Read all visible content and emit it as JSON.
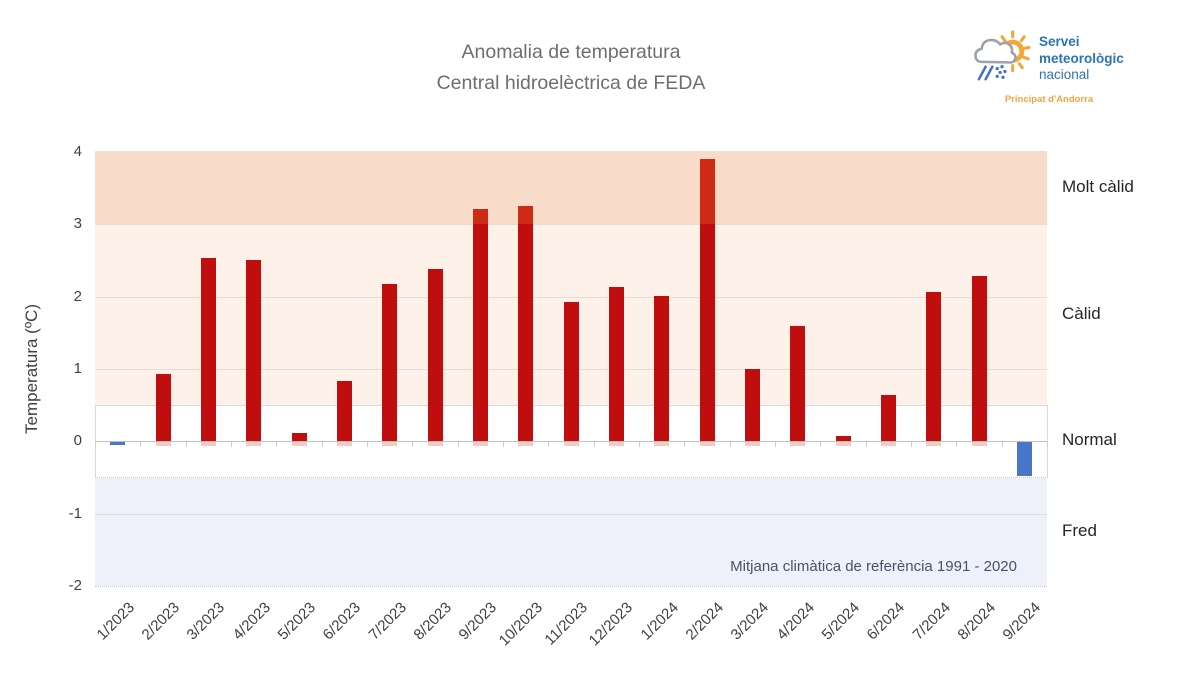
{
  "header": {
    "title_line1": "Anomalia de temperatura",
    "title_line2": "Central hidroelèctrica de FEDA"
  },
  "logo": {
    "name_line1": "Servei",
    "name_line2": "meteorològic",
    "name_line3": "nacional",
    "subtitle": "Principat d'Andorra",
    "text_color": "#2e74b5",
    "subtitle_color": "#f2a444",
    "sun_color": "#f2a834",
    "cloud_color": "#9aa3ad",
    "rain_color": "#4472c4"
  },
  "chart_data": {
    "type": "bar",
    "title": "Anomalia de temperatura",
    "subtitle": "Central hidroelèctrica de FEDA",
    "ylabel": "Temperatura (ºC)",
    "ylim": [
      -2,
      4
    ],
    "yticks": [
      4,
      3,
      2,
      1,
      0,
      -1,
      -2
    ],
    "grid": "horizontal",
    "categories": [
      "1/2023",
      "2/2023",
      "3/2023",
      "4/2023",
      "5/2023",
      "6/2023",
      "7/2023",
      "8/2023",
      "9/2023",
      "10/2023",
      "11/2023",
      "12/2023",
      "1/2024",
      "2/2024",
      "3/2024",
      "4/2024",
      "5/2024",
      "6/2024",
      "7/2024",
      "8/2024",
      "9/2024"
    ],
    "values": [
      -0.04,
      0.93,
      2.53,
      2.51,
      0.12,
      0.84,
      2.17,
      2.38,
      3.21,
      3.26,
      1.92,
      2.13,
      2.01,
      3.91,
      1.0,
      1.59,
      0.07,
      0.64,
      2.06,
      2.28,
      -0.46
    ],
    "positive_color": "#c00d0d",
    "positive_above3_color": "#ce2a15",
    "positive_base_color": "#f2cdc6",
    "negative_color": "#4876c8",
    "zones": [
      {
        "label": "Molt càlid",
        "from": 3,
        "to": 4,
        "color": "#f8dcc9"
      },
      {
        "label": "Càlid",
        "from": 0.5,
        "to": 3,
        "color": "#fdf1ea"
      },
      {
        "label": "Normal",
        "from": -0.5,
        "to": 0.5,
        "color": "#ffffff"
      },
      {
        "label": "Fred",
        "from": -2,
        "to": -0.5,
        "color": "#eef1fa"
      }
    ],
    "annotation": "Mitjana climàtica de referència 1991 - 2020"
  }
}
